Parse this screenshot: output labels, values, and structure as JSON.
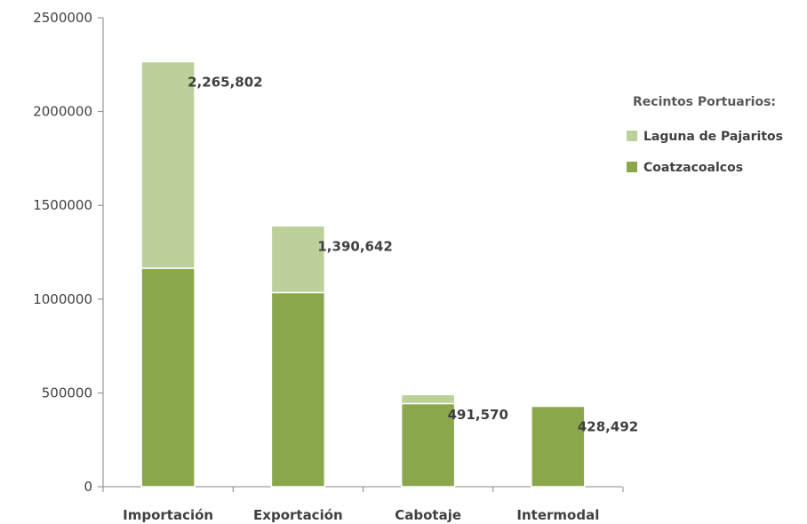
{
  "chart_data": {
    "type": "bar",
    "stacked": true,
    "categories": [
      "Importación",
      "Exportación",
      "Cabotaje",
      "Intermodal"
    ],
    "series": [
      {
        "name": "Coatzacoalcos",
        "color": "#8aa84b",
        "values": [
          1165000,
          1035000,
          443000,
          428492
        ]
      },
      {
        "name": "Laguna de Pajaritos",
        "color": "#bcd19a",
        "values": [
          1100802,
          355642,
          48570,
          0
        ]
      }
    ],
    "totals": [
      2265802,
      1390642,
      491570,
      428492
    ],
    "total_labels": [
      "2,265,802",
      "1,390,642",
      "491,570",
      "428,492"
    ],
    "ylim": [
      0,
      2500000
    ],
    "yticks": [
      0,
      500000,
      1000000,
      1500000,
      2000000,
      2500000
    ],
    "ytick_labels": [
      "0",
      "500000",
      "1000000",
      "1500000",
      "2000000",
      "2500000"
    ],
    "legend": {
      "title": "Recintos Portuarios:",
      "position": "right",
      "order": [
        1,
        0
      ]
    },
    "grid": false
  }
}
